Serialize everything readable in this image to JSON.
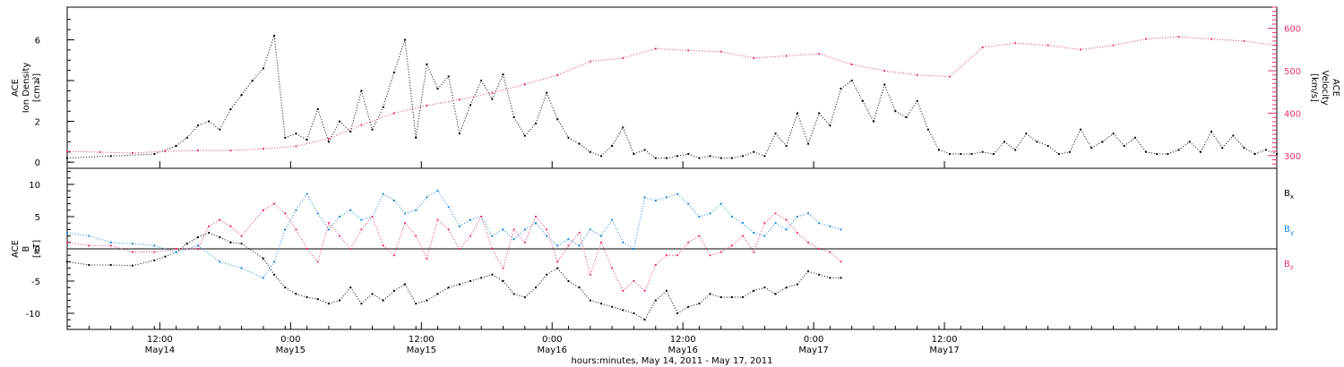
{
  "chart_data": [
    {
      "type": "scatter",
      "panel": "top",
      "ylabel_left": [
        "ACE",
        "Ion Density",
        "[cm⁻³]"
      ],
      "ylabel_right": [
        "ACE",
        "Velocity",
        "[km/s]"
      ],
      "y_left_range": [
        -0.3,
        7.6
      ],
      "y_left_ticks": [
        "0",
        "2",
        "4",
        "6"
      ],
      "y_right_range": [
        270,
        650
      ],
      "y_right_ticks": [
        "300",
        "400",
        "500",
        "600"
      ],
      "right_axis_color": "#e8336b",
      "series": [
        {
          "name": "Ion Density",
          "axis": "left",
          "color": "#000000",
          "x": [
            0,
            4,
            8,
            10,
            11,
            12,
            13,
            14,
            15,
            16,
            17,
            18,
            19,
            20,
            21,
            22,
            23,
            24,
            25,
            26,
            27,
            28,
            29,
            30,
            31,
            32,
            33,
            34,
            35,
            36,
            37,
            38,
            39,
            40,
            41,
            42,
            43,
            44,
            45,
            46,
            47,
            48,
            49,
            50,
            51,
            52,
            53,
            54,
            55,
            56,
            57,
            58,
            59,
            60,
            61,
            62,
            63,
            64,
            65,
            66,
            67,
            68,
            69,
            70,
            71,
            72,
            73,
            74,
            75,
            76,
            77,
            78,
            79,
            80,
            81,
            82,
            83,
            84,
            85,
            86,
            87,
            88,
            89,
            90,
            91,
            92,
            93,
            94,
            95,
            96,
            97,
            98,
            99,
            100,
            101,
            102,
            103,
            104,
            105,
            106,
            107,
            108,
            109,
            110,
            111
          ],
          "y": [
            0.2,
            0.3,
            0.4,
            0.8,
            1.2,
            1.8,
            2.0,
            1.6,
            2.6,
            3.3,
            4.0,
            4.6,
            6.2,
            1.2,
            1.4,
            1.1,
            2.6,
            1.0,
            2.0,
            1.5,
            3.5,
            1.6,
            2.7,
            4.4,
            6.0,
            1.2,
            4.8,
            3.6,
            4.2,
            1.4,
            2.8,
            4.0,
            3.1,
            4.3,
            2.2,
            1.3,
            1.9,
            3.4,
            2.1,
            1.2,
            0.9,
            0.5,
            0.3,
            0.8,
            1.7,
            0.4,
            0.6,
            0.2,
            0.2,
            0.3,
            0.4,
            0.2,
            0.3,
            0.2,
            0.2,
            0.3,
            0.5,
            0.3,
            1.4,
            0.8,
            2.4,
            0.9,
            2.4,
            1.8,
            3.6,
            4.0,
            3.0,
            2.0,
            3.8,
            2.5,
            2.2,
            3.0,
            1.6,
            0.6,
            0.4,
            0.4,
            0.4,
            0.5,
            0.4,
            1.0,
            0.6,
            1.4,
            1.0,
            0.8,
            0.4,
            0.5,
            1.6,
            0.7,
            1.0,
            1.4,
            0.8,
            1.2,
            0.5,
            0.4,
            0.4,
            0.6,
            1.0,
            0.5,
            1.5,
            0.7,
            1.3,
            0.7,
            0.4,
            0.6,
            0.4
          ]
        },
        {
          "name": "Velocity",
          "axis": "right",
          "color": "#e8336b",
          "x": [
            0,
            3,
            6,
            9,
            12,
            15,
            18,
            21,
            24,
            27,
            30,
            33,
            36,
            39,
            42,
            45,
            48,
            51,
            54,
            57,
            60,
            63,
            66,
            69,
            72,
            75,
            78,
            81,
            84,
            87,
            90,
            93,
            96,
            99,
            102,
            105,
            108,
            111
          ],
          "y": [
            310,
            308,
            306,
            310,
            312,
            312,
            316,
            322,
            340,
            372,
            400,
            418,
            432,
            448,
            468,
            490,
            522,
            530,
            552,
            548,
            545,
            530,
            535,
            540,
            515,
            500,
            490,
            486,
            555,
            565,
            560,
            550,
            560,
            575,
            580,
            575,
            570,
            560
          ]
        }
      ]
    },
    {
      "type": "scatter",
      "panel": "bottom",
      "ylabel_left": [
        "ACE",
        "B",
        "[nT]"
      ],
      "y_range": [
        -12.5,
        12.5
      ],
      "y_ticks": [
        "10",
        "5",
        "0",
        "-5",
        "-10"
      ],
      "zero_line": true,
      "x_range": [
        0,
        111
      ],
      "x_tick_labels": [
        {
          "time": "12:00",
          "date": "May14"
        },
        {
          "time": "0:00",
          "date": "May15"
        },
        {
          "time": "12:00",
          "date": "May15"
        },
        {
          "time": "0:00",
          "date": "May16"
        },
        {
          "time": "12:00",
          "date": "May16"
        },
        {
          "time": "0:00",
          "date": "May17"
        },
        {
          "time": "12:00",
          "date": "May17"
        }
      ],
      "x_tick_hours": [
        8.5,
        20.5,
        32.5,
        44.5,
        56.5,
        68.5,
        80.5
      ],
      "xlabel": "hours:minutes, May 14, 2011 - May 17, 2011",
      "series": [
        {
          "name": "Bx",
          "label_main": "B",
          "label_sub": "x",
          "color": "#000000",
          "x": [
            0,
            2,
            4,
            6,
            8,
            9,
            10,
            11,
            12,
            13,
            14,
            15,
            16,
            18,
            19,
            20,
            21,
            22,
            23,
            24,
            25,
            26,
            27,
            28,
            29,
            30,
            31,
            32,
            33,
            34,
            35,
            36,
            37,
            38,
            39,
            40,
            41,
            42,
            43,
            44,
            45,
            46,
            47,
            48,
            49,
            50,
            51,
            52,
            53,
            54,
            55,
            56,
            57,
            58,
            59,
            60,
            61,
            62,
            63,
            64,
            65,
            66,
            67,
            68,
            69,
            70,
            71
          ],
          "y": [
            -2,
            -2.5,
            -2.5,
            -2.6,
            -1.8,
            -1.2,
            -0.5,
            0.8,
            1.8,
            2.5,
            1.8,
            1.0,
            0.8,
            -1.5,
            -4.0,
            -6.0,
            -7.0,
            -7.5,
            -7.8,
            -8.5,
            -8.0,
            -6.0,
            -8.5,
            -7.0,
            -8.0,
            -6.5,
            -5.5,
            -8.5,
            -8.0,
            -7.0,
            -6.0,
            -5.5,
            -5.0,
            -4.5,
            -4.0,
            -5.0,
            -7.0,
            -7.5,
            -6.0,
            -4.0,
            -3.0,
            -5.0,
            -6.0,
            -8.0,
            -8.5,
            -9.0,
            -9.5,
            -10.0,
            -11.0,
            -8.0,
            -6.5,
            -10.0,
            -9.0,
            -8.5,
            -7.0,
            -7.5,
            -7.5,
            -7.5,
            -6.5,
            -6.0,
            -7.0,
            -6.0,
            -5.5,
            -3.5,
            -4.0,
            -4.5,
            -4.5
          ]
        },
        {
          "name": "By",
          "label_main": "B",
          "label_sub": "y",
          "color": "#1a86e0",
          "x": [
            0,
            2,
            4,
            6,
            8,
            10,
            12,
            14,
            16,
            18,
            19,
            20,
            21,
            22,
            23,
            24,
            25,
            26,
            27,
            28,
            29,
            30,
            31,
            32,
            33,
            34,
            35,
            36,
            37,
            38,
            39,
            40,
            41,
            42,
            43,
            44,
            45,
            46,
            47,
            48,
            49,
            50,
            51,
            52,
            53,
            54,
            55,
            56,
            57,
            58,
            59,
            60,
            61,
            62,
            63,
            64,
            65,
            66,
            67,
            68,
            69,
            70,
            71
          ],
          "y": [
            2.5,
            2.0,
            1.0,
            0.8,
            0.5,
            -0.5,
            0.5,
            -2.0,
            -3.0,
            -4.5,
            -2.0,
            3.0,
            6.0,
            8.5,
            5.5,
            3.0,
            5.0,
            6.0,
            4.5,
            5.0,
            8.5,
            7.5,
            5.5,
            6.0,
            8.0,
            9.0,
            6.5,
            3.5,
            4.5,
            5.0,
            2.0,
            3.0,
            1.5,
            3.0,
            4.0,
            2.0,
            0.5,
            1.5,
            0.5,
            3.0,
            2.0,
            4.5,
            1.0,
            0.0,
            8.0,
            7.5,
            8.0,
            8.5,
            7.0,
            5.0,
            5.5,
            7.0,
            5.0,
            4.0,
            2.5,
            2.0,
            4.0,
            3.0,
            5.0,
            5.5,
            4.0,
            3.5,
            3.0
          ]
        },
        {
          "name": "Bz",
          "label_main": "B",
          "label_sub": "z",
          "color": "#e8336b",
          "x": [
            0,
            2,
            4,
            6,
            8,
            10,
            12,
            13,
            14,
            15,
            16,
            18,
            19,
            20,
            21,
            22,
            23,
            24,
            25,
            26,
            27,
            28,
            29,
            30,
            31,
            32,
            33,
            34,
            35,
            36,
            37,
            38,
            39,
            40,
            41,
            42,
            43,
            44,
            45,
            46,
            47,
            48,
            49,
            50,
            51,
            52,
            53,
            54,
            55,
            56,
            57,
            58,
            59,
            60,
            61,
            62,
            63,
            64,
            65,
            66,
            67,
            68,
            69,
            70,
            71
          ],
          "y": [
            1.0,
            0.5,
            0.5,
            -0.5,
            -0.5,
            0.0,
            0.0,
            3.5,
            4.5,
            3.5,
            2.0,
            6.0,
            7.0,
            5.5,
            3.0,
            0.0,
            -2.0,
            4.0,
            2.0,
            0.0,
            3.0,
            5.0,
            0.5,
            -1.0,
            4.0,
            2.0,
            -1.5,
            4.5,
            3.0,
            0.0,
            2.0,
            5.0,
            0.0,
            -3.0,
            3.0,
            1.0,
            5.0,
            3.0,
            -2.0,
            0.5,
            2.5,
            -4.0,
            1.0,
            -3.0,
            -6.5,
            -5.0,
            -6.5,
            -2.5,
            -1.0,
            -1.0,
            1.0,
            2.0,
            -1.0,
            -0.5,
            0.5,
            2.0,
            -0.5,
            4.0,
            5.5,
            4.5,
            2.5,
            1.0,
            0.0,
            -0.5,
            -2.0
          ]
        }
      ]
    }
  ]
}
